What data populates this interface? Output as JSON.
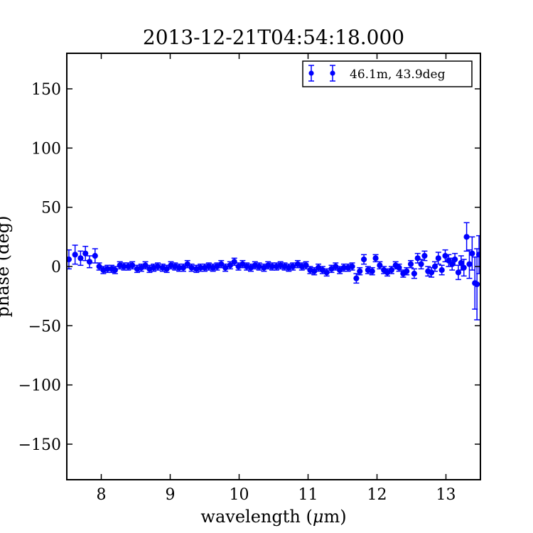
{
  "chart_data": {
    "type": "scatter",
    "title": "2013-12-21T04:54:18.000",
    "xlabel_pre": "wavelength (",
    "xlabel_mu": "μ",
    "xlabel_post": "m)",
    "ylabel": "phase (deg)",
    "xlim": [
      7.5,
      13.5
    ],
    "ylim": [
      -180,
      180
    ],
    "xticks": [
      8,
      9,
      10,
      11,
      12,
      13
    ],
    "xtick_labels": [
      "8",
      "9",
      "10",
      "11",
      "12",
      "13"
    ],
    "yticks": [
      150,
      100,
      50,
      0,
      -50,
      -100,
      -150
    ],
    "ytick_labels": [
      "150",
      "100",
      "50",
      "0",
      "−50",
      "−100",
      "−150"
    ],
    "grid": false,
    "legend_position": "top-right",
    "series": [
      {
        "name": "46.1m, 43.9deg",
        "color": "#0000ff",
        "marker": "circle",
        "errorbars": true,
        "points": [
          {
            "x": 7.53,
            "y": 6,
            "err": 8
          },
          {
            "x": 7.62,
            "y": 10,
            "err": 8
          },
          {
            "x": 7.7,
            "y": 7,
            "err": 6
          },
          {
            "x": 7.77,
            "y": 11,
            "err": 6
          },
          {
            "x": 7.83,
            "y": 4,
            "err": 5
          },
          {
            "x": 7.91,
            "y": 9,
            "err": 6
          },
          {
            "x": 7.97,
            "y": 0,
            "err": 3
          },
          {
            "x": 8.03,
            "y": -3,
            "err": 3
          },
          {
            "x": 8.09,
            "y": -2,
            "err": 3
          },
          {
            "x": 8.15,
            "y": -2,
            "err": 3
          },
          {
            "x": 8.2,
            "y": -3,
            "err": 3
          },
          {
            "x": 8.27,
            "y": 1,
            "err": 3
          },
          {
            "x": 8.33,
            "y": 0,
            "err": 3
          },
          {
            "x": 8.39,
            "y": 0,
            "err": 3
          },
          {
            "x": 8.45,
            "y": 1,
            "err": 3
          },
          {
            "x": 8.52,
            "y": -2,
            "err": 3
          },
          {
            "x": 8.58,
            "y": -1,
            "err": 3
          },
          {
            "x": 8.64,
            "y": 1,
            "err": 3
          },
          {
            "x": 8.7,
            "y": -2,
            "err": 3
          },
          {
            "x": 8.76,
            "y": -1,
            "err": 3
          },
          {
            "x": 8.82,
            "y": 0,
            "err": 3
          },
          {
            "x": 8.89,
            "y": -1,
            "err": 3
          },
          {
            "x": 8.95,
            "y": -2,
            "err": 3
          },
          {
            "x": 9.01,
            "y": 1,
            "err": 3
          },
          {
            "x": 9.07,
            "y": 0,
            "err": 3
          },
          {
            "x": 9.13,
            "y": -1,
            "err": 3
          },
          {
            "x": 9.19,
            "y": -1,
            "err": 3
          },
          {
            "x": 9.25,
            "y": 2,
            "err": 3
          },
          {
            "x": 9.31,
            "y": -1,
            "err": 3
          },
          {
            "x": 9.38,
            "y": -2,
            "err": 3
          },
          {
            "x": 9.44,
            "y": -1,
            "err": 3
          },
          {
            "x": 9.5,
            "y": -1,
            "err": 3
          },
          {
            "x": 9.56,
            "y": 0,
            "err": 3
          },
          {
            "x": 9.62,
            "y": -1,
            "err": 3
          },
          {
            "x": 9.68,
            "y": 0,
            "err": 3
          },
          {
            "x": 9.74,
            "y": 2,
            "err": 3
          },
          {
            "x": 9.8,
            "y": -1,
            "err": 3
          },
          {
            "x": 9.87,
            "y": 1,
            "err": 3
          },
          {
            "x": 9.93,
            "y": 4,
            "err": 3
          },
          {
            "x": 9.99,
            "y": 0,
            "err": 3
          },
          {
            "x": 10.05,
            "y": 2,
            "err": 3
          },
          {
            "x": 10.11,
            "y": 0,
            "err": 3
          },
          {
            "x": 10.17,
            "y": -1,
            "err": 3
          },
          {
            "x": 10.23,
            "y": 1,
            "err": 3
          },
          {
            "x": 10.29,
            "y": 0,
            "err": 3
          },
          {
            "x": 10.36,
            "y": -1,
            "err": 3
          },
          {
            "x": 10.42,
            "y": 1,
            "err": 3
          },
          {
            "x": 10.48,
            "y": 0,
            "err": 3
          },
          {
            "x": 10.54,
            "y": 0,
            "err": 3
          },
          {
            "x": 10.6,
            "y": 1,
            "err": 3
          },
          {
            "x": 10.66,
            "y": 0,
            "err": 3
          },
          {
            "x": 10.72,
            "y": -1,
            "err": 3
          },
          {
            "x": 10.78,
            "y": 0,
            "err": 3
          },
          {
            "x": 10.85,
            "y": 2,
            "err": 3
          },
          {
            "x": 10.91,
            "y": 0,
            "err": 3
          },
          {
            "x": 10.97,
            "y": 1,
            "err": 3
          },
          {
            "x": 11.03,
            "y": -3,
            "err": 3
          },
          {
            "x": 11.09,
            "y": -4,
            "err": 3
          },
          {
            "x": 11.15,
            "y": -1,
            "err": 3
          },
          {
            "x": 11.21,
            "y": -3,
            "err": 3
          },
          {
            "x": 11.27,
            "y": -5,
            "err": 3
          },
          {
            "x": 11.34,
            "y": -2,
            "err": 3
          },
          {
            "x": 11.4,
            "y": 0,
            "err": 3
          },
          {
            "x": 11.46,
            "y": -3,
            "err": 3
          },
          {
            "x": 11.52,
            "y": -1,
            "err": 3
          },
          {
            "x": 11.58,
            "y": -1,
            "err": 3
          },
          {
            "x": 11.64,
            "y": 0,
            "err": 3
          },
          {
            "x": 11.7,
            "y": -10,
            "err": 4
          },
          {
            "x": 11.75,
            "y": -4,
            "err": 3
          },
          {
            "x": 11.81,
            "y": 6,
            "err": 4
          },
          {
            "x": 11.87,
            "y": -3,
            "err": 3
          },
          {
            "x": 11.93,
            "y": -4,
            "err": 3
          },
          {
            "x": 11.98,
            "y": 7,
            "err": 3
          },
          {
            "x": 12.04,
            "y": 1,
            "err": 3
          },
          {
            "x": 12.1,
            "y": -3,
            "err": 3
          },
          {
            "x": 12.15,
            "y": -5,
            "err": 3
          },
          {
            "x": 12.21,
            "y": -3,
            "err": 3
          },
          {
            "x": 12.27,
            "y": 1,
            "err": 3
          },
          {
            "x": 12.32,
            "y": -1,
            "err": 3
          },
          {
            "x": 12.38,
            "y": -6,
            "err": 3
          },
          {
            "x": 12.43,
            "y": -4,
            "err": 3
          },
          {
            "x": 12.49,
            "y": 2,
            "err": 3
          },
          {
            "x": 12.54,
            "y": -6,
            "err": 4
          },
          {
            "x": 12.59,
            "y": 7,
            "err": 4
          },
          {
            "x": 12.64,
            "y": 2,
            "err": 4
          },
          {
            "x": 12.69,
            "y": 9,
            "err": 4
          },
          {
            "x": 12.74,
            "y": -4,
            "err": 4
          },
          {
            "x": 12.79,
            "y": -5,
            "err": 4
          },
          {
            "x": 12.84,
            "y": 0,
            "err": 4
          },
          {
            "x": 12.89,
            "y": 7,
            "err": 5
          },
          {
            "x": 12.94,
            "y": -3,
            "err": 4
          },
          {
            "x": 12.99,
            "y": 9,
            "err": 5
          },
          {
            "x": 13.04,
            "y": 5,
            "err": 5
          },
          {
            "x": 13.09,
            "y": 2,
            "err": 5
          },
          {
            "x": 13.13,
            "y": 6,
            "err": 5
          },
          {
            "x": 13.18,
            "y": -5,
            "err": 6
          },
          {
            "x": 13.22,
            "y": 3,
            "err": 6
          },
          {
            "x": 13.26,
            "y": -1,
            "err": 7
          },
          {
            "x": 13.3,
            "y": 25,
            "err": 12
          },
          {
            "x": 13.34,
            "y": 2,
            "err": 12
          },
          {
            "x": 13.38,
            "y": 11,
            "err": 14
          },
          {
            "x": 13.42,
            "y": -14,
            "err": 22
          },
          {
            "x": 13.45,
            "y": -15,
            "err": 30
          },
          {
            "x": 13.48,
            "y": 10,
            "err": 16
          }
        ]
      }
    ]
  }
}
